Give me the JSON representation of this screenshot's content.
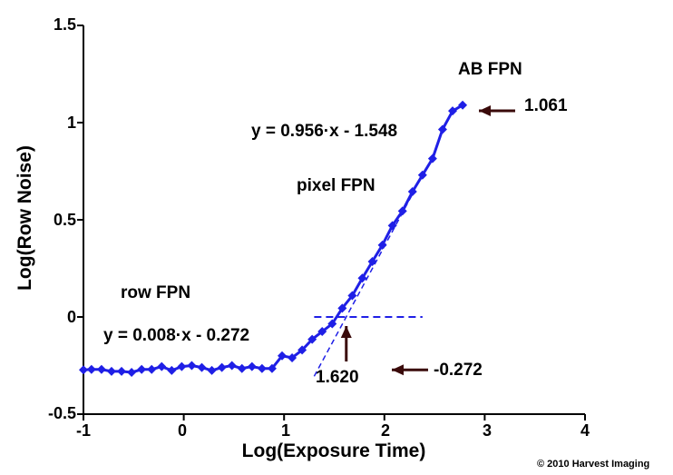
{
  "colors": {
    "series": "#1f1fe6",
    "text": "#000000",
    "arrow": "#3a0a0a"
  },
  "chart_data": {
    "type": "line",
    "xlabel": "Log(Exposure Time)",
    "ylabel": "Log(Row Noise)",
    "xlim": [
      -1,
      4
    ],
    "ylim": [
      -0.5,
      1.5
    ],
    "xticks": [
      "-1",
      "0",
      "1",
      "2",
      "3",
      "4"
    ],
    "yticks": [
      "-0.5",
      "0",
      "0.5",
      "1",
      "1.5"
    ],
    "grid": false,
    "series": [
      {
        "x": [
          -1.0,
          -0.92,
          -0.82,
          -0.72,
          -0.62,
          -0.52,
          -0.42,
          -0.32,
          -0.22,
          -0.12,
          -0.02,
          0.08,
          0.18,
          0.28,
          0.38,
          0.48,
          0.58,
          0.68,
          0.78,
          0.88,
          0.98,
          1.08,
          1.18,
          1.28,
          1.38,
          1.48,
          1.58,
          1.68,
          1.78,
          1.88,
          1.98,
          2.08,
          2.18,
          2.28,
          2.38,
          2.48,
          2.58,
          2.68,
          2.78
        ],
        "y": [
          -0.272,
          -0.27,
          -0.27,
          -0.28,
          -0.28,
          -0.285,
          -0.27,
          -0.27,
          -0.255,
          -0.275,
          -0.255,
          -0.25,
          -0.26,
          -0.275,
          -0.26,
          -0.25,
          -0.265,
          -0.255,
          -0.265,
          -0.265,
          -0.2,
          -0.21,
          -0.17,
          -0.115,
          -0.075,
          -0.035,
          0.045,
          0.11,
          0.2,
          0.285,
          0.37,
          0.47,
          0.545,
          0.645,
          0.73,
          0.815,
          0.965,
          1.06,
          1.09
        ]
      }
    ],
    "annotations": [
      {
        "text": "AB FPN"
      },
      {
        "text": "y = 0.956·x - 1.548"
      },
      {
        "text": "pixel FPN"
      },
      {
        "text": "row FPN"
      },
      {
        "text": "y = 0.008·x - 0.272"
      },
      {
        "text": "1.620",
        "x": 1.62
      },
      {
        "text": "-0.272",
        "y": -0.272
      },
      {
        "text": "1.061",
        "y": 1.061
      }
    ],
    "fits": [
      {
        "slope": 0.956,
        "intercept": -1.548,
        "x_range": [
          1.3,
          2.3
        ]
      },
      {
        "slope": 0.008,
        "intercept": -0.272,
        "x_range": [
          -1.0,
          0.9
        ]
      }
    ],
    "reference_line": {
      "y": 0,
      "x_range": [
        1.3,
        2.38
      ]
    }
  },
  "footer": {
    "copyright": "© 2010 Harvest Imaging"
  }
}
